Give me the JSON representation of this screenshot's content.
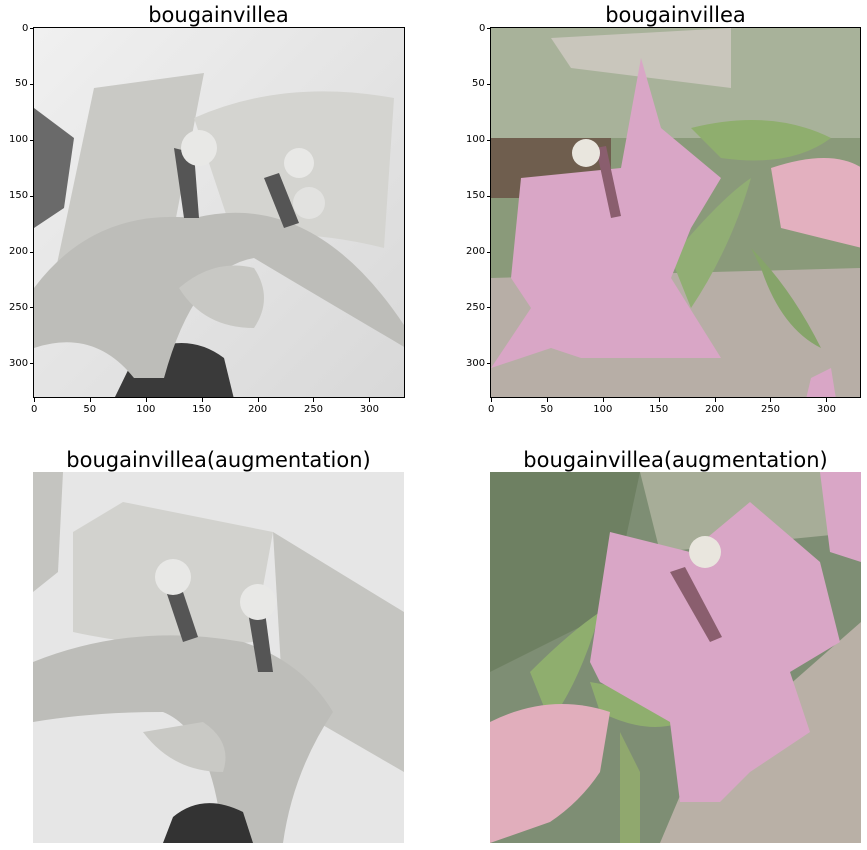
{
  "panels": [
    {
      "title": "bougainvillea",
      "type": "grayscale",
      "axes": {
        "x_ticks": [
          "0",
          "50",
          "100",
          "150",
          "200",
          "250",
          "300"
        ],
        "y_ticks": [
          "0",
          "50",
          "100",
          "150",
          "200",
          "250",
          "300"
        ]
      }
    },
    {
      "title": "bougainvillea",
      "type": "color",
      "axes": {
        "x_ticks": [
          "0",
          "50",
          "100",
          "150",
          "200",
          "250",
          "300"
        ],
        "y_ticks": [
          "0",
          "50",
          "100",
          "150",
          "200",
          "250",
          "300"
        ]
      }
    },
    {
      "title": "bougainvillea(augmentation)",
      "type": "grayscale-augmented"
    },
    {
      "title": "bougainvillea(augmentation)",
      "type": "color-augmented"
    }
  ],
  "colors": {
    "gray_bg": "#e4e4e4",
    "gray_petal": "#cfcfcb",
    "gray_dark": "#3a3a3a",
    "pink_petal": "#d9a6c6",
    "green_leaf": "#9ab07e",
    "ground": "#b7aea6"
  }
}
